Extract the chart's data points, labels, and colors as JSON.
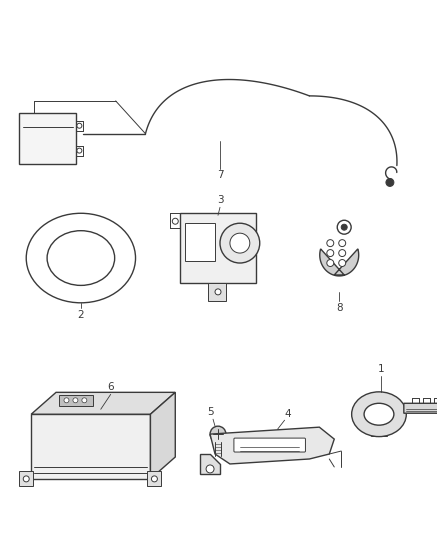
{
  "background_color": "#ffffff",
  "fig_width": 4.38,
  "fig_height": 5.33,
  "dpi": 100,
  "line_color": "#3a3a3a",
  "label_fontsize": 7.5
}
